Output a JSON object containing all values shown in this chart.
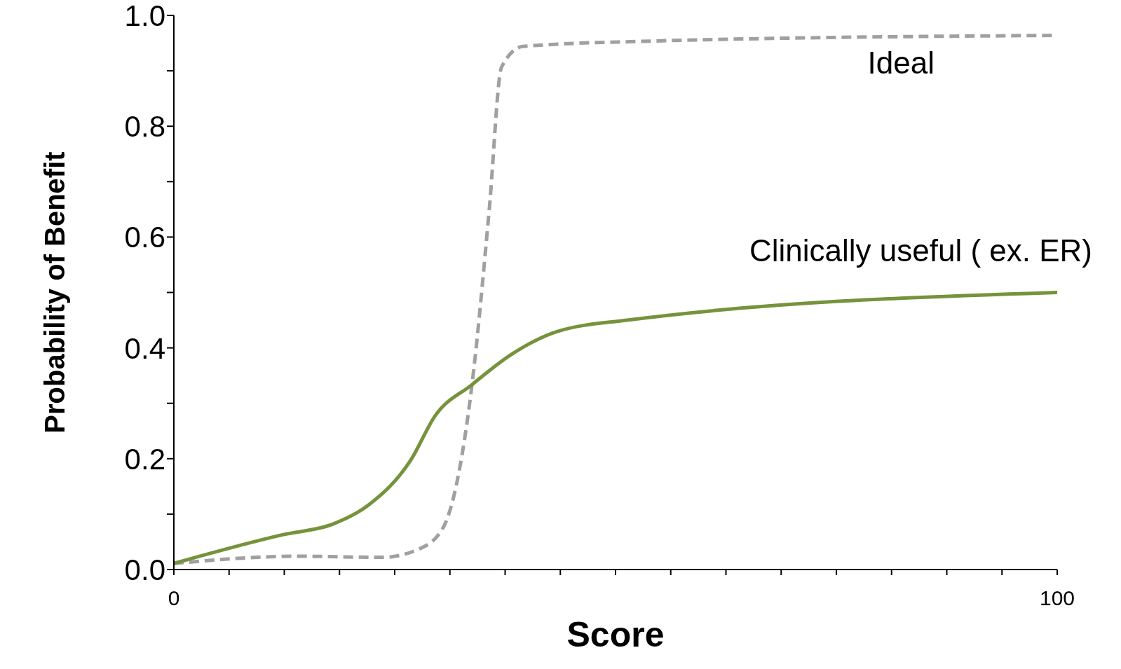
{
  "chart_data": {
    "type": "line",
    "xlabel": "Score",
    "ylabel": "Probability of Benefit",
    "xlim": [
      0,
      100
    ],
    "ylim": [
      0,
      1
    ],
    "xticks": [
      0,
      {
        "value": 6.25,
        "label": null
      },
      {
        "value": 12.5,
        "label": null
      },
      {
        "value": 18.75,
        "label": null
      },
      {
        "value": 25,
        "label": null
      },
      {
        "value": 31.25,
        "label": null
      },
      {
        "value": 37.5,
        "label": null
      },
      {
        "value": 43.75,
        "label": null
      },
      {
        "value": 50,
        "label": null
      },
      {
        "value": 56.25,
        "label": null
      },
      {
        "value": 62.5,
        "label": null
      },
      {
        "value": 68.75,
        "label": null
      },
      {
        "value": 75,
        "label": null
      },
      {
        "value": 81.25,
        "label": null
      },
      {
        "value": 87.5,
        "label": null
      },
      {
        "value": 93.75,
        "label": null
      },
      100
    ],
    "yticks": [
      {
        "value": 0,
        "label": "0.0"
      },
      {
        "value": 0.1,
        "label": null
      },
      0.2,
      {
        "value": 0.3,
        "label": null
      },
      0.4,
      {
        "value": 0.5,
        "label": null
      },
      0.6,
      {
        "value": 0.7,
        "label": null
      },
      0.8,
      {
        "value": 0.9,
        "label": null
      },
      {
        "value": 1,
        "label": "1.0"
      }
    ],
    "grid": false,
    "legend": false,
    "marker": "none",
    "series": [
      {
        "name": "Ideal",
        "color": "#a0a0a0",
        "line_style": "dashed",
        "x": [
          0,
          14,
          23.6,
          27.6,
          30.4,
          32,
          33.7,
          35.7,
          37.1,
          39.5,
          52.5,
          100
        ],
        "values": [
          0.011,
          0.024,
          0.022,
          0.036,
          0.073,
          0.154,
          0.327,
          0.649,
          0.907,
          0.944,
          0.953,
          0.964
        ]
      },
      {
        "name": "Clinically useful ( ex. ER)",
        "color": "#76933c",
        "line_style": "solid",
        "x": [
          0,
          12.4,
          18,
          22,
          26.8,
          29.6,
          33.7,
          38.1,
          43.3,
          51.3,
          100
        ],
        "values": [
          0.011,
          0.063,
          0.082,
          0.116,
          0.197,
          0.278,
          0.333,
          0.387,
          0.429,
          0.45,
          0.5
        ]
      }
    ]
  }
}
